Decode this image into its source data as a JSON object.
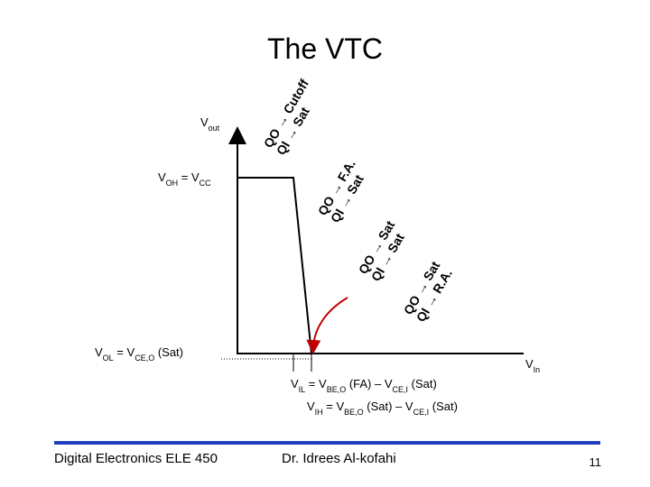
{
  "title": "The VTC",
  "labels": {
    "vout": [
      "V",
      "out"
    ],
    "voh": [
      "V",
      "OH",
      " = V",
      "CC"
    ],
    "vol": [
      "V",
      "OL",
      " = V",
      "CE,O",
      " (Sat)"
    ],
    "vin": [
      "V",
      "In"
    ],
    "vil": [
      "V",
      "IL",
      " = V",
      "BE,O",
      " (FA) – V",
      "CE,I",
      " (Sat)"
    ],
    "vih": [
      "V",
      "IH",
      " = V",
      "BE,O",
      " (Sat) – V",
      "CE,I",
      " (Sat)"
    ]
  },
  "regions": [
    {
      "lines": [
        "QO → Cutoff",
        "QI → Sat"
      ]
    },
    {
      "lines": [
        "QO → F.A.",
        "QI → Sat"
      ]
    },
    {
      "lines": [
        "QO → Sat",
        "QI → Sat"
      ]
    },
    {
      "lines": [
        "QO → Sat",
        "QI → R.A."
      ]
    }
  ],
  "footer": {
    "course": "Digital Electronics ELE 450",
    "author": "Dr. Idrees Al-kofahi",
    "page": "11"
  }
}
